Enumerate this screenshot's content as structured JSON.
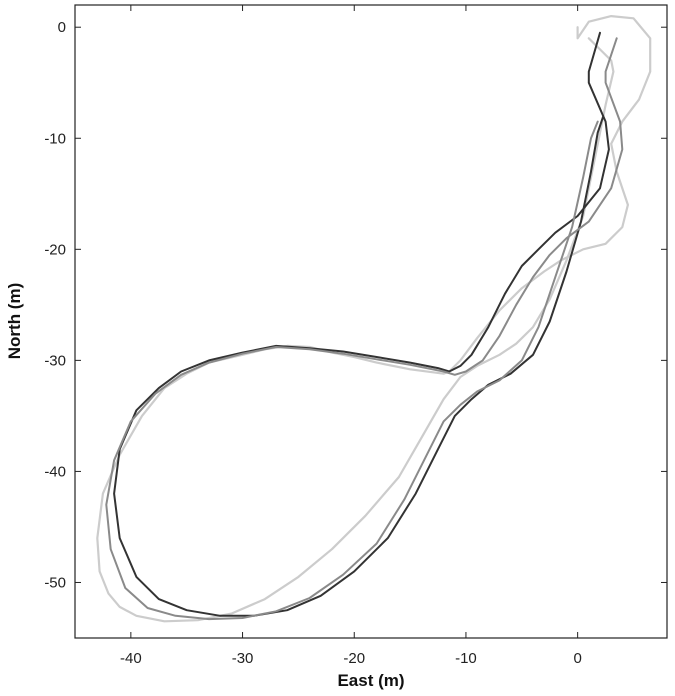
{
  "chart_data": {
    "type": "line",
    "title": "",
    "xlabel": "East (m)",
    "ylabel": "North (m)",
    "xlim": [
      -45,
      8
    ],
    "ylim": [
      -55,
      2
    ],
    "grid": false,
    "legend": "none",
    "x_ticks": [
      -40,
      -30,
      -20,
      -10,
      0
    ],
    "y_ticks": [
      0,
      -10,
      -20,
      -30,
      -40,
      -50
    ],
    "series": [
      {
        "color": "#cccccc",
        "x": [
          0,
          0,
          1,
          3,
          5,
          6.5,
          6.5,
          5.5,
          4,
          3,
          3.5,
          4.5,
          4,
          2.5,
          0.5,
          -1.5,
          -3,
          -5,
          -7,
          -9,
          -10.5,
          -11.5,
          -12,
          -15,
          -18,
          -20,
          -22,
          -24,
          -26,
          -28,
          -30,
          -33,
          -35,
          -37,
          -39,
          -41,
          -42.5,
          -43,
          -42.8,
          -42,
          -41,
          -39.5,
          -37,
          -34,
          -31,
          -28,
          -25,
          -22,
          -19,
          -16,
          -14,
          -12,
          -10.5,
          -9,
          -7,
          -5.5,
          -4,
          -2.5,
          -1,
          0.5,
          1.5,
          2.5,
          3.2,
          3,
          2,
          1
        ],
        "y": [
          0,
          -1,
          0.5,
          1,
          0.8,
          -1,
          -4,
          -6.5,
          -8.5,
          -10.5,
          -13,
          -16,
          -18,
          -19.5,
          -20,
          -21,
          -22,
          -23.5,
          -25.5,
          -28,
          -30,
          -31,
          -31.2,
          -30.8,
          -30.2,
          -29.7,
          -29.3,
          -28.8,
          -28.7,
          -29,
          -29.5,
          -30.2,
          -31.2,
          -32.5,
          -35,
          -38.5,
          -42,
          -46,
          -49,
          -51,
          -52.2,
          -53,
          -53.5,
          -53.4,
          -52.8,
          -51.5,
          -49.5,
          -47,
          -44,
          -40.5,
          -37,
          -33.5,
          -31.5,
          -30.5,
          -29.5,
          -28.5,
          -27,
          -24.5,
          -21,
          -17,
          -12,
          -7,
          -4,
          -3,
          -2,
          -1
        ]
      },
      {
        "color": "#333333",
        "x": [
          2,
          1,
          1,
          2.5,
          2.8,
          2,
          0,
          -2,
          -3.5,
          -5,
          -6.5,
          -8,
          -9.5,
          -10.5,
          -11.5,
          -12.5,
          -15,
          -18,
          -21,
          -24,
          -27,
          -30,
          -33,
          -35.5,
          -37.5,
          -39.5,
          -41,
          -41.5,
          -41,
          -39.5,
          -37.5,
          -35,
          -32,
          -29,
          -26,
          -23,
          -20,
          -17,
          -14.5,
          -12.5,
          -11,
          -9.5,
          -8,
          -6,
          -4,
          -2.5,
          -1,
          0.3,
          1.2,
          1.8,
          2.3
        ],
        "y": [
          -0.5,
          -4,
          -5,
          -8.5,
          -11,
          -14.5,
          -17,
          -18.5,
          -20,
          -21.5,
          -24,
          -27,
          -29.5,
          -30.5,
          -31,
          -30.7,
          -30.2,
          -29.7,
          -29.2,
          -28.9,
          -28.7,
          -29.3,
          -30,
          -31,
          -32.5,
          -34.5,
          -38,
          -42,
          -46,
          -49.5,
          -51.5,
          -52.5,
          -53,
          -53,
          -52.5,
          -51.2,
          -49,
          -46,
          -42,
          -38,
          -35,
          -33.5,
          -32.2,
          -31.2,
          -29.5,
          -26.5,
          -22,
          -17.5,
          -13,
          -9.5,
          -8
        ]
      },
      {
        "color": "#8a8a8a",
        "x": [
          3.5,
          2.5,
          2.5,
          3.8,
          4,
          3,
          1,
          -1,
          -2.5,
          -4,
          -5.5,
          -7,
          -8.5,
          -10,
          -11,
          -12,
          -15,
          -18,
          -21,
          -24,
          -27,
          -30,
          -33,
          -35.5,
          -37.8,
          -40,
          -41.5,
          -42.2,
          -41.8,
          -40.5,
          -38.5,
          -36,
          -33,
          -30,
          -27,
          -24,
          -21,
          -18,
          -15.5,
          -13.5,
          -12,
          -10.5,
          -9,
          -7,
          -5,
          -3.5,
          -2,
          -0.5,
          0.5,
          1.2,
          1.8
        ],
        "y": [
          -1,
          -4,
          -5,
          -8.5,
          -11,
          -14.5,
          -17.5,
          -19,
          -20.5,
          -22.5,
          -25,
          -27.8,
          -30,
          -31,
          -31.3,
          -31,
          -30.4,
          -29.9,
          -29.4,
          -29,
          -28.8,
          -29.4,
          -30.2,
          -31.3,
          -33,
          -35.5,
          -39,
          -43,
          -47,
          -50.5,
          -52.3,
          -53,
          -53.3,
          -53.2,
          -52.6,
          -51.4,
          -49.3,
          -46.5,
          -42.5,
          -38.5,
          -35.5,
          -34,
          -32.8,
          -31.8,
          -30,
          -27,
          -22.5,
          -18,
          -13.5,
          -10,
          -8.5
        ]
      }
    ]
  }
}
